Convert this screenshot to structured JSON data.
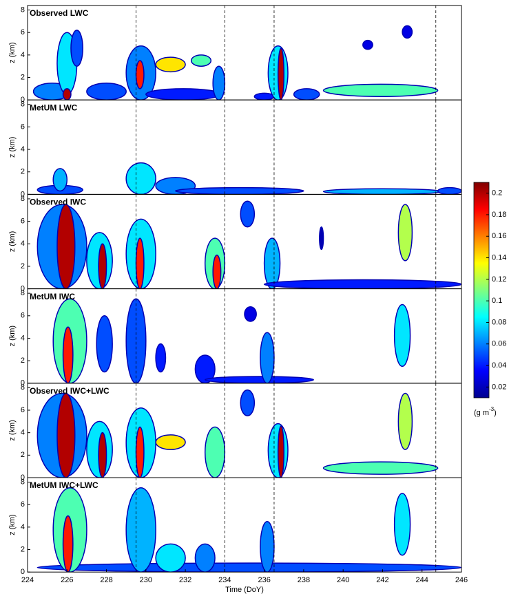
{
  "chart_data": [
    {
      "type": "contour",
      "title": "Observed LWC",
      "ylabel": "z (km)",
      "xlim": [
        224,
        246
      ],
      "ylim": [
        0,
        8.4
      ],
      "yticks": [
        0,
        2,
        4,
        6,
        8
      ],
      "vlines": [
        229.5,
        234,
        236.5,
        244.7
      ],
      "blobs": [
        {
          "x": [
            224.3,
            226.2
          ],
          "z": [
            0,
            1.5
          ],
          "value": 0.06
        },
        {
          "x": [
            225.5,
            226.5
          ],
          "z": [
            0.5,
            6
          ],
          "value": 0.08
        },
        {
          "x": [
            226.2,
            226.8
          ],
          "z": [
            3,
            6.2
          ],
          "value": 0.05
        },
        {
          "x": [
            225.8,
            226.2
          ],
          "z": [
            0,
            1
          ],
          "value": 0.2
        },
        {
          "x": [
            227,
            229
          ],
          "z": [
            0,
            1.5
          ],
          "value": 0.05
        },
        {
          "x": [
            229,
            230.5
          ],
          "z": [
            0,
            4.8
          ],
          "value": 0.06
        },
        {
          "x": [
            229.5,
            229.9
          ],
          "z": [
            1,
            3.5
          ],
          "value": 0.18
        },
        {
          "x": [
            230.5,
            232
          ],
          "z": [
            2.5,
            3.8
          ],
          "value": 0.14
        },
        {
          "x": [
            232.3,
            233.3
          ],
          "z": [
            3,
            4
          ],
          "value": 0.1
        },
        {
          "x": [
            230,
            233.8
          ],
          "z": [
            0,
            1
          ],
          "value": 0.04
        },
        {
          "x": [
            233.4,
            234
          ],
          "z": [
            0,
            3
          ],
          "value": 0.06
        },
        {
          "x": [
            235.5,
            236.5
          ],
          "z": [
            0,
            0.6
          ],
          "value": 0.04
        },
        {
          "x": [
            236.2,
            237.2
          ],
          "z": [
            0,
            4.8
          ],
          "value": 0.08
        },
        {
          "x": [
            236.7,
            237
          ],
          "z": [
            0,
            4.6
          ],
          "value": 0.2
        },
        {
          "x": [
            237.5,
            238.8
          ],
          "z": [
            0,
            1
          ],
          "value": 0.05
        },
        {
          "x": [
            239,
            244.8
          ],
          "z": [
            0.3,
            1.4
          ],
          "value": 0.1
        },
        {
          "x": [
            243,
            243.5
          ],
          "z": [
            5.5,
            6.6
          ],
          "value": 0.03
        },
        {
          "x": [
            241,
            241.5
          ],
          "z": [
            4.5,
            5.3
          ],
          "value": 0.03
        }
      ]
    },
    {
      "type": "contour",
      "title": "MetUM LWC",
      "ylabel": "z (km)",
      "xlim": [
        224,
        246
      ],
      "ylim": [
        0,
        8.4
      ],
      "yticks": [
        0,
        2,
        4,
        6,
        8
      ],
      "vlines": [
        229.5,
        234,
        236.5,
        244.7
      ],
      "blobs": [
        {
          "x": [
            224.5,
            226.8
          ],
          "z": [
            0,
            0.8
          ],
          "value": 0.05
        },
        {
          "x": [
            225.3,
            226
          ],
          "z": [
            0.3,
            2.3
          ],
          "value": 0.07
        },
        {
          "x": [
            229,
            230.5
          ],
          "z": [
            0,
            2.8
          ],
          "value": 0.08
        },
        {
          "x": [
            230.5,
            232.5
          ],
          "z": [
            0,
            1.5
          ],
          "value": 0.06
        },
        {
          "x": [
            231.5,
            238
          ],
          "z": [
            0,
            0.6
          ],
          "value": 0.05
        },
        {
          "x": [
            239,
            245
          ],
          "z": [
            0,
            0.5
          ],
          "value": 0.07
        },
        {
          "x": [
            244.8,
            246
          ],
          "z": [
            0,
            0.6
          ],
          "value": 0.05
        }
      ]
    },
    {
      "type": "contour",
      "title": "Observed IWC",
      "ylabel": "z (km)",
      "xlim": [
        224,
        246
      ],
      "ylim": [
        0,
        8.4
      ],
      "yticks": [
        0,
        2,
        4,
        6,
        8
      ],
      "vlines": [
        229.5,
        234,
        236.5,
        244.7
      ],
      "blobs": [
        {
          "x": [
            224.5,
            227
          ],
          "z": [
            0,
            7.5
          ],
          "value": 0.06
        },
        {
          "x": [
            225.5,
            226.4
          ],
          "z": [
            0,
            7.5
          ],
          "value": 0.2
        },
        {
          "x": [
            227,
            228.3
          ],
          "z": [
            0,
            5
          ],
          "value": 0.08
        },
        {
          "x": [
            227.6,
            228
          ],
          "z": [
            0,
            4
          ],
          "value": 0.2
        },
        {
          "x": [
            229,
            230.5
          ],
          "z": [
            0,
            6.2
          ],
          "value": 0.08
        },
        {
          "x": [
            229.5,
            229.9
          ],
          "z": [
            0,
            4.5
          ],
          "value": 0.18
        },
        {
          "x": [
            233,
            234
          ],
          "z": [
            0,
            4.5
          ],
          "value": 0.1
        },
        {
          "x": [
            233.4,
            233.8
          ],
          "z": [
            0,
            3
          ],
          "value": 0.18
        },
        {
          "x": [
            234.8,
            235.5
          ],
          "z": [
            5.5,
            7.8
          ],
          "value": 0.05
        },
        {
          "x": [
            236,
            236.8
          ],
          "z": [
            0,
            4.5
          ],
          "value": 0.07
        },
        {
          "x": [
            236,
            246
          ],
          "z": [
            0,
            0.8
          ],
          "value": 0.04
        },
        {
          "x": [
            242.8,
            243.5
          ],
          "z": [
            2.5,
            7.5
          ],
          "value": 0.12
        },
        {
          "x": [
            238.8,
            239
          ],
          "z": [
            3.5,
            5.5
          ],
          "value": 0.02
        }
      ]
    },
    {
      "type": "contour",
      "title": "MetUM IWC",
      "ylabel": "z (km)",
      "xlim": [
        224,
        246
      ],
      "ylim": [
        0,
        8.4
      ],
      "yticks": [
        0,
        2,
        4,
        6,
        8
      ],
      "vlines": [
        229.5,
        234,
        236.5,
        244.7
      ],
      "blobs": [
        {
          "x": [
            225.3,
            227
          ],
          "z": [
            0,
            7.5
          ],
          "value": 0.1
        },
        {
          "x": [
            225.8,
            226.3
          ],
          "z": [
            0,
            5
          ],
          "value": 0.18
        },
        {
          "x": [
            227.5,
            228.3
          ],
          "z": [
            1,
            6
          ],
          "value": 0.05
        },
        {
          "x": [
            229,
            230
          ],
          "z": [
            0,
            7.5
          ],
          "value": 0.05
        },
        {
          "x": [
            230.5,
            231
          ],
          "z": [
            1,
            3.5
          ],
          "value": 0.04
        },
        {
          "x": [
            232.5,
            233.5
          ],
          "z": [
            0,
            2.5
          ],
          "value": 0.04
        },
        {
          "x": [
            233,
            238.5
          ],
          "z": [
            0,
            0.6
          ],
          "value": 0.04
        },
        {
          "x": [
            235.8,
            236.5
          ],
          "z": [
            0,
            4.5
          ],
          "value": 0.06
        },
        {
          "x": [
            235,
            235.6
          ],
          "z": [
            5.5,
            6.8
          ],
          "value": 0.03
        },
        {
          "x": [
            242.6,
            243.4
          ],
          "z": [
            1.5,
            7
          ],
          "value": 0.08
        }
      ]
    },
    {
      "type": "contour",
      "title": "Observed IWC+LWC",
      "ylabel": "z (km)",
      "xlim": [
        224,
        246
      ],
      "ylim": [
        0,
        8.4
      ],
      "yticks": [
        0,
        2,
        4,
        6,
        8
      ],
      "vlines": [
        229.5,
        234,
        236.5,
        244.7
      ],
      "blobs": [
        {
          "x": [
            224.5,
            227
          ],
          "z": [
            0,
            7.5
          ],
          "value": 0.06
        },
        {
          "x": [
            225.5,
            226.4
          ],
          "z": [
            0,
            7.5
          ],
          "value": 0.2
        },
        {
          "x": [
            227,
            228.3
          ],
          "z": [
            0,
            5
          ],
          "value": 0.08
        },
        {
          "x": [
            227.6,
            228
          ],
          "z": [
            0,
            4
          ],
          "value": 0.2
        },
        {
          "x": [
            229,
            230.5
          ],
          "z": [
            0,
            6.2
          ],
          "value": 0.08
        },
        {
          "x": [
            229.5,
            229.9
          ],
          "z": [
            0,
            4.5
          ],
          "value": 0.18
        },
        {
          "x": [
            230.5,
            232
          ],
          "z": [
            2.5,
            3.8
          ],
          "value": 0.14
        },
        {
          "x": [
            233,
            234
          ],
          "z": [
            0,
            4.5
          ],
          "value": 0.1
        },
        {
          "x": [
            234.8,
            235.5
          ],
          "z": [
            5.5,
            7.8
          ],
          "value": 0.05
        },
        {
          "x": [
            236.2,
            237.2
          ],
          "z": [
            0,
            4.8
          ],
          "value": 0.08
        },
        {
          "x": [
            236.7,
            237
          ],
          "z": [
            0,
            4.6
          ],
          "value": 0.2
        },
        {
          "x": [
            239,
            244.8
          ],
          "z": [
            0.3,
            1.4
          ],
          "value": 0.1
        },
        {
          "x": [
            242.8,
            243.5
          ],
          "z": [
            2.5,
            7.5
          ],
          "value": 0.12
        }
      ]
    },
    {
      "type": "contour",
      "title": "MetUM IWC+LWC",
      "ylabel": "z (km)",
      "xlabel": "Time (DoY)",
      "xlim": [
        224,
        246
      ],
      "xticks": [
        224,
        226,
        228,
        230,
        232,
        234,
        236,
        238,
        240,
        242,
        244,
        246
      ],
      "ylim": [
        0,
        8.4
      ],
      "yticks": [
        0,
        2,
        4,
        6,
        8
      ],
      "vlines": [
        229.5,
        234,
        236.5,
        244.7
      ],
      "blobs": [
        {
          "x": [
            224.5,
            246
          ],
          "z": [
            0,
            0.8
          ],
          "value": 0.05
        },
        {
          "x": [
            225.3,
            227
          ],
          "z": [
            0,
            7.5
          ],
          "value": 0.1
        },
        {
          "x": [
            225.8,
            226.3
          ],
          "z": [
            0,
            5
          ],
          "value": 0.18
        },
        {
          "x": [
            229,
            230.5
          ],
          "z": [
            0,
            7.5
          ],
          "value": 0.07
        },
        {
          "x": [
            230.5,
            232
          ],
          "z": [
            0,
            2.5
          ],
          "value": 0.08
        },
        {
          "x": [
            232.5,
            233.5
          ],
          "z": [
            0,
            2.5
          ],
          "value": 0.06
        },
        {
          "x": [
            235.8,
            236.5
          ],
          "z": [
            0,
            4.5
          ],
          "value": 0.06
        },
        {
          "x": [
            242.6,
            243.4
          ],
          "z": [
            1.5,
            7
          ],
          "value": 0.08
        }
      ]
    }
  ],
  "colorbar": {
    "clim": [
      0.01,
      0.21
    ],
    "ticks": [
      0.02,
      0.04,
      0.06,
      0.08,
      0.1,
      0.12,
      0.14,
      0.16,
      0.18,
      0.2
    ],
    "label": [
      "(g m",
      "-3",
      ")"
    ]
  }
}
